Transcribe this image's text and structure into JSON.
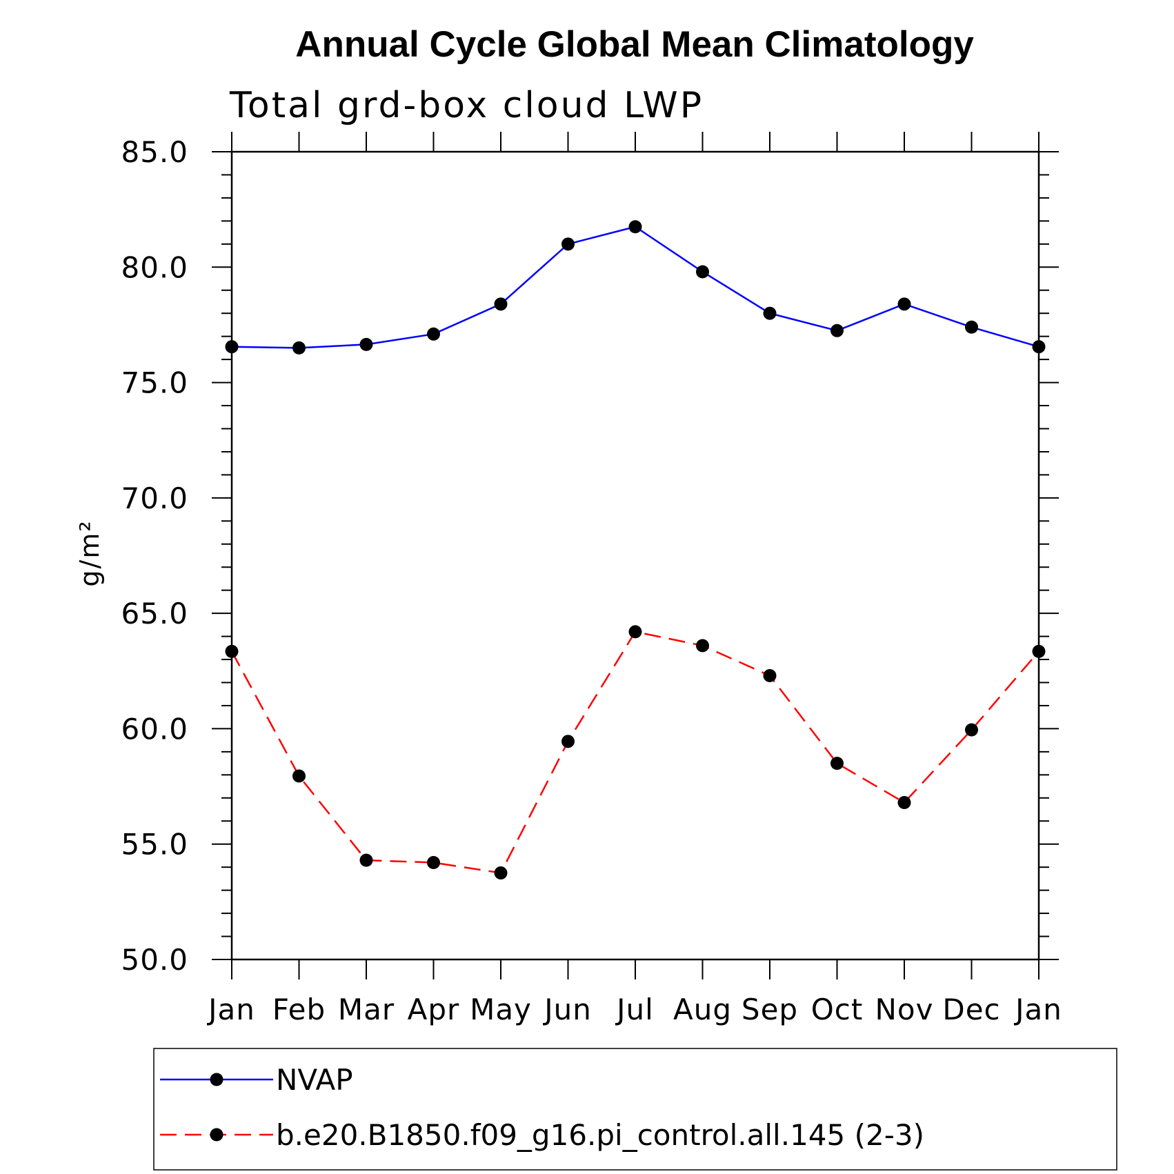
{
  "chart_data": {
    "type": "line",
    "title": "Annual Cycle Global Mean Climatology",
    "subtitle": "Total grd-box cloud LWP",
    "ylabel": "g/m²",
    "xlabel": "",
    "ylim": [
      50,
      85
    ],
    "yticks": [
      "50.0",
      "55.0",
      "60.0",
      "65.0",
      "70.0",
      "75.0",
      "80.0",
      "85.0"
    ],
    "categories": [
      "Jan",
      "Feb",
      "Mar",
      "Apr",
      "May",
      "Jun",
      "Jul",
      "Aug",
      "Sep",
      "Oct",
      "Nov",
      "Dec",
      "Jan"
    ],
    "grid": false,
    "legend_position": "bottom",
    "series": [
      {
        "name": "NVAP",
        "color": "#0000ff",
        "line_style": "solid",
        "marker": "filled-circle",
        "values": [
          76.55,
          76.5,
          76.65,
          77.1,
          78.4,
          81.0,
          81.75,
          79.8,
          78.0,
          77.25,
          78.4,
          77.4,
          76.55
        ]
      },
      {
        "name": "b.e20.B1850.f09_g16.pi_control.all.145 (2-3)",
        "color": "#ff0000",
        "line_style": "dashed",
        "marker": "filled-circle",
        "values": [
          63.35,
          57.95,
          54.3,
          54.2,
          53.75,
          59.45,
          64.2,
          63.6,
          62.3,
          58.5,
          56.8,
          59.95,
          63.35
        ]
      }
    ]
  }
}
